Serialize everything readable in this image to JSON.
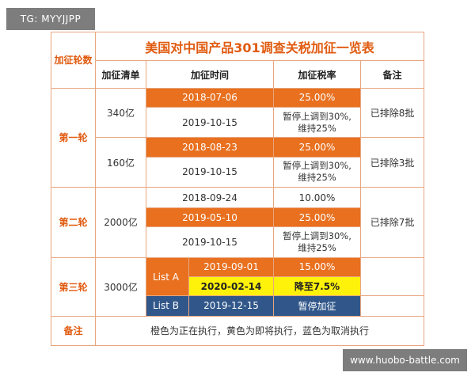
{
  "watermarks": {
    "top": "TG: MYYJJPP",
    "bottom": "www.huobo-battle.com"
  },
  "table": {
    "title": "美国对中国产品301调查关税加征一览表",
    "round_header": "加征轮数",
    "headers": {
      "list": "加征清单",
      "time": "加征时间",
      "rate": "加征税率",
      "note": "备注"
    },
    "rounds": [
      {
        "label": "第一轮",
        "groups": [
          {
            "amount": "340亿",
            "note": "已排除8批",
            "rows": [
              {
                "date": "2018-07-06",
                "rate": "25.00%",
                "color": "#e8701f"
              },
              {
                "date": "2019-10-15",
                "rate": "暂停上调到30%,\n维持25%",
                "color": "#ffffff"
              }
            ]
          },
          {
            "amount": "160亿",
            "note": "已排除3批",
            "rows": [
              {
                "date": "2018-08-23",
                "rate": "25.00%",
                "color": "#e8701f"
              },
              {
                "date": "2019-10-15",
                "rate": "暂停上调到30%,\n维持25%",
                "color": "#ffffff"
              }
            ]
          }
        ]
      },
      {
        "label": "第二轮",
        "groups": [
          {
            "amount": "2000亿",
            "note": "已排除7批",
            "rows": [
              {
                "date": "2018-09-24",
                "rate": "10.00%",
                "color": "#ffffff"
              },
              {
                "date": "2019-05-10",
                "rate": "25.00%",
                "color": "#e8701f"
              },
              {
                "date": "2019-10-15",
                "rate": "暂停上调到30%,\n维持25%",
                "color": "#ffffff"
              }
            ]
          }
        ]
      },
      {
        "label": "第三轮",
        "groups": [
          {
            "amount": "3000亿",
            "sublists": [
              {
                "name": "List A",
                "rows": [
                  {
                    "date": "2019-09-01",
                    "rate": "15.00%",
                    "color": "#e8701f"
                  },
                  {
                    "date": "2020-02-14",
                    "rate": "降至7.5%",
                    "color": "#fff20a"
                  }
                ]
              },
              {
                "name": "List B",
                "rows": [
                  {
                    "date": "2019-12-15",
                    "rate": "暂停加征",
                    "color": "#31578a"
                  }
                ]
              }
            ]
          }
        ]
      }
    ],
    "footer": {
      "label": "备注",
      "text": "橙色为正在执行，黄色为即将执行，蓝色为取消执行"
    }
  }
}
